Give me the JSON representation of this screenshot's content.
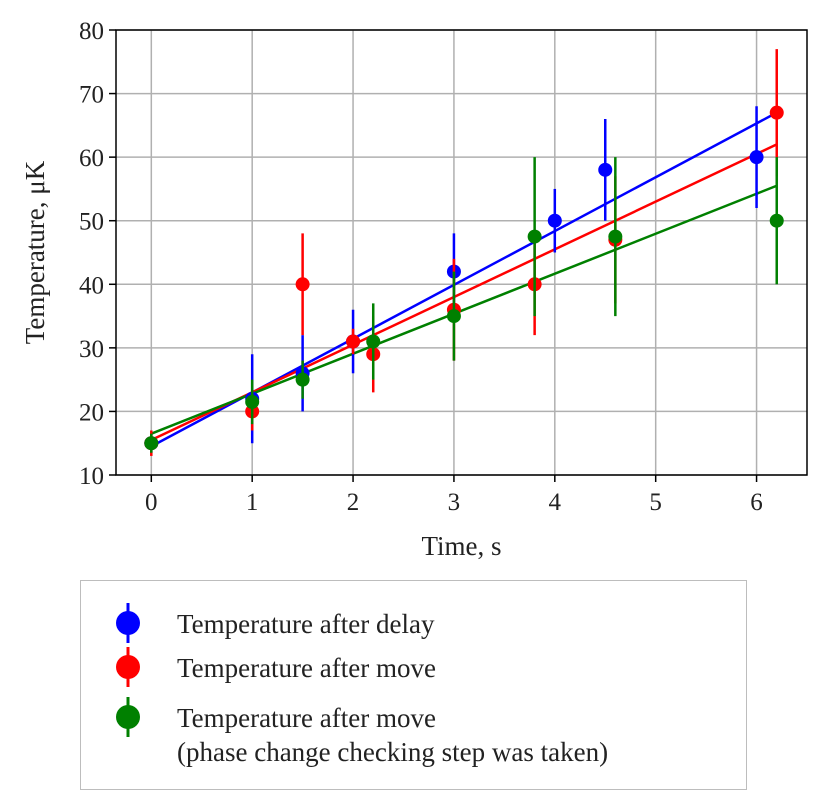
{
  "chart_data": {
    "type": "scatter",
    "xlabel": "Time, s",
    "ylabel": "Temperature, μK",
    "xlim": [
      -0.35,
      6.5
    ],
    "ylim": [
      10,
      80
    ],
    "xticks": [
      0,
      1,
      2,
      3,
      4,
      5,
      6
    ],
    "yticks": [
      10,
      20,
      30,
      40,
      50,
      60,
      70,
      80
    ],
    "grid": true,
    "legend_position": "bottom",
    "series": [
      {
        "name": "Temperature after delay",
        "color": "#0000ff",
        "points": [
          {
            "x": 0,
            "y": 15,
            "err": 1.5
          },
          {
            "x": 1,
            "y": 22,
            "err": 7
          },
          {
            "x": 1.5,
            "y": 26,
            "err": 6
          },
          {
            "x": 2,
            "y": 31,
            "err": 5
          },
          {
            "x": 3,
            "y": 42,
            "err": 6
          },
          {
            "x": 4,
            "y": 50,
            "err": 5
          },
          {
            "x": 4.5,
            "y": 58,
            "err": 8
          },
          {
            "x": 6,
            "y": 60,
            "err": 8
          }
        ],
        "fit": {
          "x": [
            0,
            6.2
          ],
          "y": [
            14.5,
            67
          ]
        }
      },
      {
        "name": "Temperature after move",
        "color": "#ff0000",
        "points": [
          {
            "x": 0,
            "y": 15,
            "err": 2
          },
          {
            "x": 1,
            "y": 20,
            "err": 3
          },
          {
            "x": 1.5,
            "y": 40,
            "err": 8
          },
          {
            "x": 2,
            "y": 31,
            "err": 2
          },
          {
            "x": 2.2,
            "y": 29,
            "err": 6
          },
          {
            "x": 3,
            "y": 36,
            "err": 8
          },
          {
            "x": 3.8,
            "y": 40,
            "err": 8
          },
          {
            "x": 4.6,
            "y": 47,
            "err": 10
          },
          {
            "x": 6.2,
            "y": 67,
            "err": 10
          }
        ],
        "fit": {
          "x": [
            0,
            6.2
          ],
          "y": [
            15.5,
            62
          ]
        }
      },
      {
        "name": "Temperature after move",
        "color": "#008000",
        "points": [
          {
            "x": 0,
            "y": 15,
            "err": 1.5
          },
          {
            "x": 1,
            "y": 21.5,
            "err": 3.5
          },
          {
            "x": 1.5,
            "y": 25,
            "err": 3
          },
          {
            "x": 2.2,
            "y": 31,
            "err": 6
          },
          {
            "x": 3,
            "y": 35,
            "err": 7
          },
          {
            "x": 3.8,
            "y": 47.5,
            "err": 12.5
          },
          {
            "x": 4.6,
            "y": 47.5,
            "err": 12.5
          },
          {
            "x": 6.2,
            "y": 50,
            "err": 10
          }
        ],
        "fit": {
          "x": [
            0,
            6.2
          ],
          "y": [
            16.5,
            55.5
          ]
        }
      }
    ]
  },
  "legend": [
    {
      "line1": "Temperature after delay",
      "line2": "",
      "color": "#0000ff"
    },
    {
      "line1": "Temperature after move",
      "line2": "",
      "color": "#ff0000"
    },
    {
      "line1": "Temperature after move",
      "line2": "(phase change checking step was taken)",
      "color": "#008000"
    }
  ]
}
